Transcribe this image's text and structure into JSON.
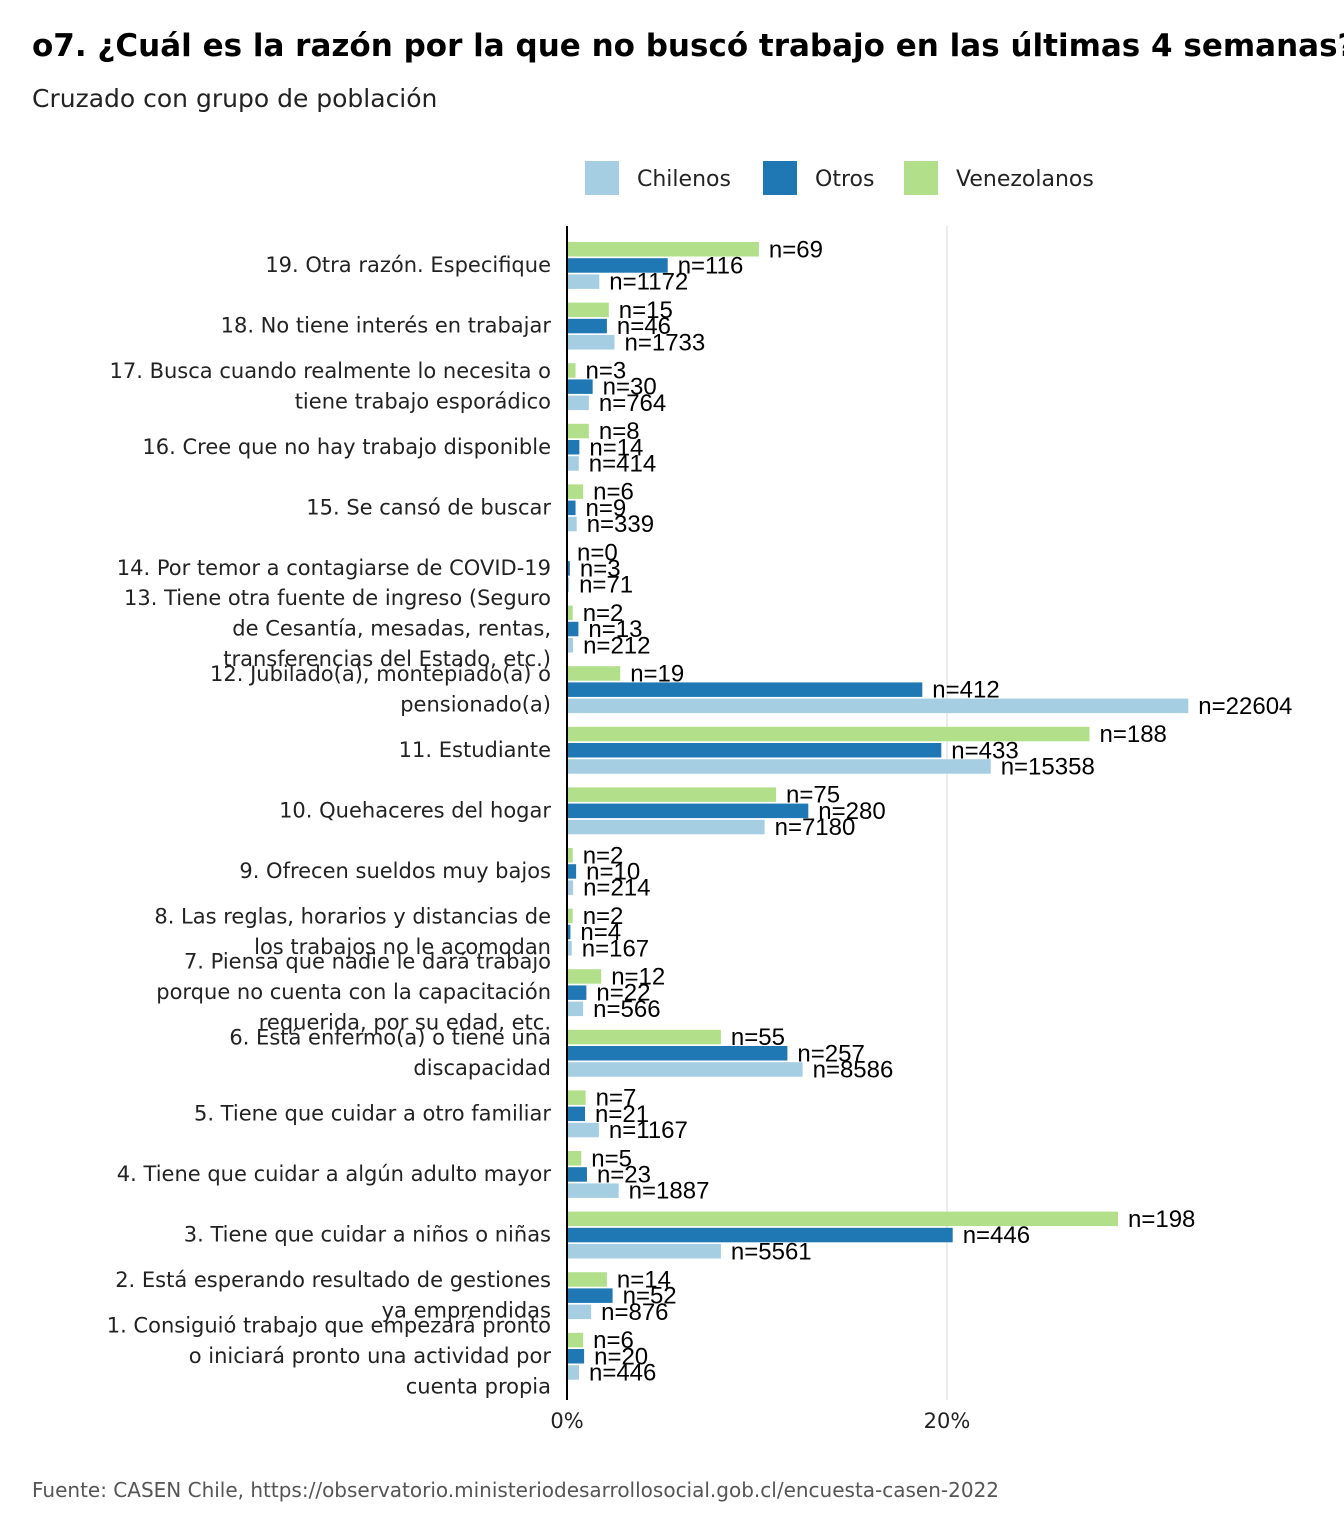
{
  "title": "o7. ¿Cuál es la razón por la que no buscó trabajo en las últimas 4 semanas?",
  "subtitle": "Cruzado con grupo de población",
  "caption": "Fuente: CASEN Chile, https://observatorio.ministeriodesarrollosocial.gob.cl/encuesta-casen-2022",
  "colors": {
    "Chilenos": "#a6cee3",
    "Otros": "#1f78b4",
    "Venezolanos": "#b2df8a"
  },
  "chart_data": {
    "type": "bar",
    "orientation": "horizontal",
    "xlabel": "",
    "ylabel": "",
    "xlim": [
      0,
      0.4
    ],
    "x_ticks": [
      "0%",
      "20%"
    ],
    "grid": true,
    "legend": {
      "position": "top",
      "entries": [
        "Chilenos",
        "Otros",
        "Venezolanos"
      ]
    },
    "categories": [
      [
        "19. Otra razón. Especifique"
      ],
      [
        "18. No tiene interés en trabajar"
      ],
      [
        "17. Busca cuando realmente lo necesita o",
        "tiene trabajo esporádico"
      ],
      [
        "16. Cree que no hay trabajo disponible"
      ],
      [
        "15. Se cansó de buscar"
      ],
      [
        "14. Por temor a contagiarse de COVID-19"
      ],
      [
        "13. Tiene otra fuente de ingreso (Seguro",
        "de Cesantía, mesadas, rentas,",
        "transferencias del Estado, etc.)"
      ],
      [
        "12. Jubilado(a), montepiado(a) o",
        "pensionado(a)"
      ],
      [
        "11. Estudiante"
      ],
      [
        "10. Quehaceres del hogar"
      ],
      [
        "9. Ofrecen sueldos muy bajos"
      ],
      [
        "8. Las reglas, horarios y distancias de",
        "los trabajos no le acomodan"
      ],
      [
        "7. Piensa que nadie le dará trabajo",
        "porque no cuenta con la capacitación",
        "requerida, por su edad, etc."
      ],
      [
        "6. Está enfermo(a) o tiene una",
        "discapacidad"
      ],
      [
        "5. Tiene que cuidar a otro familiar"
      ],
      [
        "4. Tiene que cuidar a algún adulto mayor"
      ],
      [
        "3. Tiene que cuidar a niños o niñas"
      ],
      [
        "2. Está esperando resultado de gestiones",
        "ya emprendidas"
      ],
      [
        "1. Consiguió trabajo que empezará pronto",
        "o iniciará pronto una actividad por",
        "cuenta propia"
      ]
    ],
    "series": [
      {
        "name": "Venezolanos",
        "values": [
          0.101,
          0.022,
          0.0045,
          0.0115,
          0.0085,
          0.0,
          0.003,
          0.028,
          0.275,
          0.11,
          0.003,
          0.003,
          0.018,
          0.081,
          0.0098,
          0.0075,
          0.29,
          0.021,
          0.0085
        ],
        "n": [
          "n=69",
          "n=15",
          "n=3",
          "n=8",
          "n=6",
          "n=0",
          "n=2",
          "n=19",
          "n=188",
          "n=75",
          "n=2",
          "n=2",
          "n=12",
          "n=55",
          "n=7",
          "n=5",
          "n=198",
          "n=14",
          "n=6"
        ]
      },
      {
        "name": "Otros",
        "values": [
          0.053,
          0.021,
          0.0135,
          0.0065,
          0.0045,
          0.0015,
          0.006,
          0.187,
          0.197,
          0.127,
          0.0048,
          0.0018,
          0.0102,
          0.116,
          0.0095,
          0.0105,
          0.203,
          0.024,
          0.009
        ],
        "n": [
          "n=116",
          "n=46",
          "n=30",
          "n=14",
          "n=9",
          "n=3",
          "n=13",
          "n=412",
          "n=433",
          "n=280",
          "n=10",
          "n=4",
          "n=22",
          "n=257",
          "n=21",
          "n=23",
          "n=446",
          "n=52",
          "n=20"
        ]
      },
      {
        "name": "Chilenos",
        "values": [
          0.017,
          0.025,
          0.0115,
          0.0062,
          0.0051,
          0.0011,
          0.0032,
          0.327,
          0.223,
          0.104,
          0.0032,
          0.0025,
          0.0085,
          0.124,
          0.0168,
          0.0272,
          0.081,
          0.0127,
          0.0063
        ],
        "n": [
          "n=1172",
          "n=1733",
          "n=764",
          "n=414",
          "n=339",
          "n=71",
          "n=212",
          "n=22604",
          "n=15358",
          "n=7180",
          "n=214",
          "n=167",
          "n=566",
          "n=8586",
          "n=1167",
          "n=1887",
          "n=5561",
          "n=876",
          "n=446"
        ]
      }
    ]
  }
}
